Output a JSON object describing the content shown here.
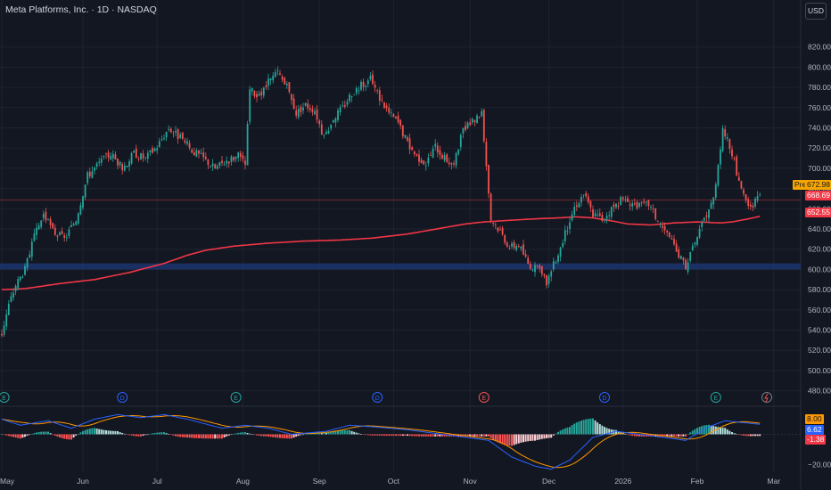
{
  "header": {
    "title": "Meta Platforms, Inc. · 1D · NASDAQ",
    "currency": "USD"
  },
  "colors": {
    "background": "#131722",
    "grid": "#1f2330",
    "up": "#26a69a",
    "down": "#ef5350",
    "ma": "#f23645",
    "zone": "#1e3a78",
    "macd": "#2962ff",
    "signal": "#ff9800",
    "text": "#b2b5be"
  },
  "price_tags": {
    "pre_label": "Pre",
    "pre_price": "672.98",
    "last_price": "668.69",
    "ma_value": "652.55"
  },
  "macd_tags": {
    "signal": "8.00",
    "macd": "6.62",
    "histogram": "-1.38"
  },
  "event_labels": [
    "E",
    "D",
    "E",
    "D",
    "E",
    "D",
    "E"
  ],
  "chart_data": [
    {
      "type": "candlestick",
      "title": "Meta Platforms, Inc. · 1D · NASDAQ",
      "xlabel": "",
      "ylabel": "",
      "ylim": [
        470,
        840
      ],
      "y_ticks": [
        820,
        800,
        780,
        760,
        740,
        720,
        700,
        680,
        660,
        640,
        620,
        600,
        580,
        560,
        540,
        520,
        500,
        480
      ],
      "x_labels": [
        "May",
        "Jun",
        "Jul",
        "Aug",
        "Sep",
        "Oct",
        "Nov",
        "Dec",
        "2026",
        "Feb",
        "Mar"
      ],
      "grid": true,
      "reference_lines": [
        {
          "name": "Pre",
          "value": 672.98
        },
        {
          "name": "last",
          "value": 668.69
        }
      ],
      "support_zone": [
        600,
        606
      ],
      "moving_average": {
        "current_value": 652.55,
        "points": [
          [
            0,
            580
          ],
          [
            10,
            581
          ],
          [
            25,
            586
          ],
          [
            40,
            590
          ],
          [
            55,
            597
          ],
          [
            70,
            606
          ],
          [
            80,
            614
          ],
          [
            88,
            619
          ],
          [
            100,
            623
          ],
          [
            115,
            626
          ],
          [
            130,
            628
          ],
          [
            145,
            629
          ],
          [
            160,
            631
          ],
          [
            175,
            635
          ],
          [
            190,
            641
          ],
          [
            200,
            645
          ],
          [
            208,
            647
          ],
          [
            215,
            648
          ],
          [
            222,
            649
          ],
          [
            230,
            650
          ],
          [
            240,
            651
          ],
          [
            248,
            652
          ],
          [
            255,
            651
          ],
          [
            263,
            648
          ],
          [
            270,
            645
          ],
          [
            280,
            644
          ],
          [
            290,
            646
          ],
          [
            300,
            647
          ],
          [
            310,
            646
          ],
          [
            315,
            647
          ],
          [
            322,
            650
          ],
          [
            327,
            652.5
          ]
        ]
      },
      "candle_anchors": [
        [
          0,
          537
        ],
        [
          3,
          565
        ],
        [
          6,
          585
        ],
        [
          10,
          600
        ],
        [
          14,
          632
        ],
        [
          18,
          655
        ],
        [
          22,
          638
        ],
        [
          27,
          630
        ],
        [
          32,
          650
        ],
        [
          37,
          693
        ],
        [
          42,
          705
        ],
        [
          47,
          715
        ],
        [
          52,
          700
        ],
        [
          57,
          715
        ],
        [
          62,
          710
        ],
        [
          67,
          722
        ],
        [
          72,
          740
        ],
        [
          77,
          730
        ],
        [
          82,
          718
        ],
        [
          87,
          710
        ],
        [
          92,
          700
        ],
        [
          97,
          708
        ],
        [
          102,
          712
        ],
        [
          105,
          704
        ],
        [
          107,
          778
        ],
        [
          111,
          770
        ],
        [
          115,
          785
        ],
        [
          119,
          795
        ],
        [
          123,
          780
        ],
        [
          127,
          755
        ],
        [
          131,
          763
        ],
        [
          135,
          758
        ],
        [
          139,
          730
        ],
        [
          143,
          750
        ],
        [
          147,
          760
        ],
        [
          151,
          775
        ],
        [
          155,
          782
        ],
        [
          159,
          788
        ],
        [
          163,
          770
        ],
        [
          167,
          755
        ],
        [
          171,
          745
        ],
        [
          175,
          725
        ],
        [
          179,
          712
        ],
        [
          183,
          705
        ],
        [
          187,
          722
        ],
        [
          191,
          710
        ],
        [
          195,
          703
        ],
        [
          199,
          738
        ],
        [
          203,
          745
        ],
        [
          207,
          757
        ],
        [
          211,
          650
        ],
        [
          215,
          638
        ],
        [
          219,
          622
        ],
        [
          223,
          625
        ],
        [
          227,
          606
        ],
        [
          231,
          600
        ],
        [
          235,
          588
        ],
        [
          239,
          610
        ],
        [
          243,
          635
        ],
        [
          247,
          662
        ],
        [
          251,
          675
        ],
        [
          255,
          655
        ],
        [
          259,
          650
        ],
        [
          263,
          660
        ],
        [
          267,
          668
        ],
        [
          271,
          667
        ],
        [
          275,
          662
        ],
        [
          279,
          665
        ],
        [
          283,
          648
        ],
        [
          287,
          635
        ],
        [
          291,
          617
        ],
        [
          295,
          604
        ],
        [
          299,
          625
        ],
        [
          303,
          650
        ],
        [
          307,
          670
        ],
        [
          311,
          740
        ],
        [
          315,
          715
        ],
        [
          319,
          677
        ],
        [
          323,
          660
        ],
        [
          327,
          672.98
        ]
      ],
      "volatility": 5,
      "seed": 3
    },
    {
      "type": "macd",
      "ylim": [
        -25,
        15
      ],
      "y_ticks": [
        8.0,
        0,
        -20.0
      ],
      "series_points": [
        [
          0,
          10
        ],
        [
          8,
          6
        ],
        [
          20,
          9
        ],
        [
          30,
          4
        ],
        [
          40,
          10
        ],
        [
          50,
          13
        ],
        [
          60,
          11
        ],
        [
          70,
          13
        ],
        [
          80,
          10
        ],
        [
          95,
          4
        ],
        [
          105,
          6
        ],
        [
          115,
          4
        ],
        [
          125,
          0
        ],
        [
          140,
          2
        ],
        [
          150,
          6
        ],
        [
          160,
          5
        ],
        [
          175,
          3
        ],
        [
          190,
          0
        ],
        [
          200,
          -2
        ],
        [
          210,
          -4
        ],
        [
          220,
          -15
        ],
        [
          230,
          -21
        ],
        [
          237,
          -23
        ],
        [
          245,
          -17
        ],
        [
          255,
          -2
        ],
        [
          265,
          2
        ],
        [
          275,
          0
        ],
        [
          285,
          -2
        ],
        [
          295,
          -4
        ],
        [
          305,
          5
        ],
        [
          312,
          9
        ],
        [
          318,
          8
        ],
        [
          327,
          6.62
        ]
      ],
      "signal_lag": 5,
      "current": {
        "macd": 6.62,
        "signal": 8.0,
        "histogram": -1.38
      }
    }
  ]
}
